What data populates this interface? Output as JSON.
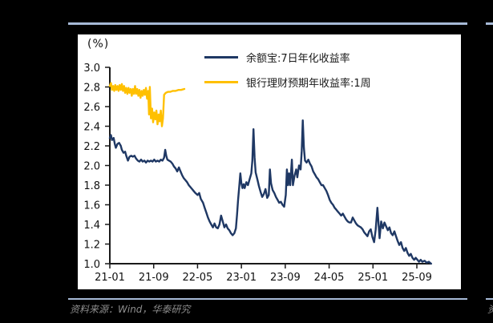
{
  "page": {
    "background_color": "#000000",
    "divider_color": "#A6B9D6",
    "panel_color": "#FFFFFF"
  },
  "footer": {
    "source_text": "资料来源：Wind，华泰研究",
    "text_color": "#8E8E8E",
    "right_edge_fragment": "资"
  },
  "chart_data": {
    "type": "line",
    "title": "",
    "unit_label": "(%)",
    "axis_color": "#1a1a1a",
    "text_color": "#111111",
    "grid": "off",
    "legend_position": "top-center",
    "x_axis": {
      "label": "",
      "tick_months": [
        0,
        8,
        16,
        24,
        32,
        40,
        48,
        56
      ],
      "tick_labels": [
        "21-01",
        "21-09",
        "22-05",
        "23-01",
        "23-09",
        "24-05",
        "25-01",
        "25-09"
      ]
    },
    "y_axis": {
      "label": "(%)",
      "min": 1.0,
      "max": 3.0,
      "step": 0.2,
      "tick_labels": [
        "3.0",
        "2.8",
        "2.6",
        "2.4",
        "2.2",
        "2.0",
        "1.8",
        "1.6",
        "1.4",
        "1.2",
        "1.0"
      ]
    },
    "series": [
      {
        "name": "余额宝:7日年化收益率",
        "color": "#1F3864",
        "points": [
          [
            0,
            2.28
          ],
          [
            0.2,
            2.31
          ],
          [
            0.4,
            2.26
          ],
          [
            0.7,
            2.28
          ],
          [
            0.9,
            2.22
          ],
          [
            1.1,
            2.18
          ],
          [
            1.4,
            2.22
          ],
          [
            1.7,
            2.23
          ],
          [
            2,
            2.2
          ],
          [
            2.2,
            2.16
          ],
          [
            2.5,
            2.13
          ],
          [
            2.8,
            2.14
          ],
          [
            3,
            2.1
          ],
          [
            3.3,
            2.05
          ],
          [
            3.6,
            2.09
          ],
          [
            3.9,
            2.1
          ],
          [
            4.2,
            2.09
          ],
          [
            4.5,
            2.1
          ],
          [
            4.8,
            2.07
          ],
          [
            5.1,
            2.05
          ],
          [
            5.4,
            2.04
          ],
          [
            5.7,
            2.06
          ],
          [
            6,
            2.04
          ],
          [
            6.3,
            2.05
          ],
          [
            6.6,
            2.03
          ],
          [
            6.9,
            2.05
          ],
          [
            7.2,
            2.04
          ],
          [
            7.5,
            2.05
          ],
          [
            7.8,
            2.04
          ],
          [
            8.1,
            2.06
          ],
          [
            8.4,
            2.04
          ],
          [
            8.7,
            2.05
          ],
          [
            9,
            2.04
          ],
          [
            9.3,
            2.06
          ],
          [
            9.6,
            2.05
          ],
          [
            9.9,
            2.08
          ],
          [
            10.1,
            2.16
          ],
          [
            10.3,
            2.1
          ],
          [
            10.5,
            2.06
          ],
          [
            10.8,
            2.05
          ],
          [
            11.1,
            2.04
          ],
          [
            11.4,
            2.02
          ],
          [
            11.7,
            1.99
          ],
          [
            12,
            1.97
          ],
          [
            12.3,
            1.94
          ],
          [
            12.6,
            1.98
          ],
          [
            12.9,
            1.94
          ],
          [
            13.2,
            1.9
          ],
          [
            13.5,
            1.87
          ],
          [
            13.8,
            1.85
          ],
          [
            14.1,
            1.83
          ],
          [
            14.4,
            1.8
          ],
          [
            14.7,
            1.78
          ],
          [
            15,
            1.76
          ],
          [
            15.3,
            1.74
          ],
          [
            15.6,
            1.72
          ],
          [
            16,
            1.7
          ],
          [
            16.3,
            1.72
          ],
          [
            16.6,
            1.66
          ],
          [
            17,
            1.62
          ],
          [
            17.3,
            1.57
          ],
          [
            17.6,
            1.52
          ],
          [
            17.9,
            1.47
          ],
          [
            18.2,
            1.43
          ],
          [
            18.5,
            1.4
          ],
          [
            18.8,
            1.37
          ],
          [
            19.1,
            1.41
          ],
          [
            19.4,
            1.37
          ],
          [
            19.7,
            1.36
          ],
          [
            20,
            1.4
          ],
          [
            20.3,
            1.49
          ],
          [
            20.6,
            1.43
          ],
          [
            20.9,
            1.37
          ],
          [
            21.2,
            1.4
          ],
          [
            21.5,
            1.36
          ],
          [
            21.8,
            1.34
          ],
          [
            22.1,
            1.31
          ],
          [
            22.4,
            1.29
          ],
          [
            22.7,
            1.31
          ],
          [
            23,
            1.36
          ],
          [
            23.2,
            1.5
          ],
          [
            23.4,
            1.65
          ],
          [
            23.6,
            1.78
          ],
          [
            23.8,
            1.92
          ],
          [
            24,
            1.82
          ],
          [
            24.2,
            1.77
          ],
          [
            24.4,
            1.81
          ],
          [
            24.6,
            1.77
          ],
          [
            24.9,
            1.83
          ],
          [
            25.2,
            1.8
          ],
          [
            25.5,
            1.86
          ],
          [
            25.8,
            1.92
          ],
          [
            26,
            2.05
          ],
          [
            26.2,
            2.37
          ],
          [
            26.4,
            2.08
          ],
          [
            26.6,
            1.93
          ],
          [
            26.9,
            1.86
          ],
          [
            27.2,
            1.79
          ],
          [
            27.5,
            1.73
          ],
          [
            27.8,
            1.68
          ],
          [
            28.1,
            1.71
          ],
          [
            28.4,
            1.76
          ],
          [
            28.7,
            1.67
          ],
          [
            29,
            1.7
          ],
          [
            29.2,
            1.96
          ],
          [
            29.4,
            1.82
          ],
          [
            29.7,
            1.75
          ],
          [
            30,
            1.72
          ],
          [
            30.3,
            1.68
          ],
          [
            30.6,
            1.65
          ],
          [
            30.9,
            1.62
          ],
          [
            31.2,
            1.63
          ],
          [
            31.5,
            1.6
          ],
          [
            31.8,
            1.58
          ],
          [
            32.1,
            1.7
          ],
          [
            32.3,
            1.96
          ],
          [
            32.5,
            1.8
          ],
          [
            32.7,
            1.92
          ],
          [
            32.9,
            1.8
          ],
          [
            33.2,
            2.06
          ],
          [
            33.4,
            1.8
          ],
          [
            33.7,
            1.9
          ],
          [
            34,
            1.96
          ],
          [
            34.2,
            1.88
          ],
          [
            34.5,
            2.0
          ],
          [
            34.8,
            1.96
          ],
          [
            35,
            2.15
          ],
          [
            35.2,
            2.46
          ],
          [
            35.4,
            2.18
          ],
          [
            35.6,
            2.05
          ],
          [
            35.9,
            2.03
          ],
          [
            36.2,
            2.06
          ],
          [
            36.5,
            2.02
          ],
          [
            36.8,
            1.99
          ],
          [
            37.1,
            1.94
          ],
          [
            37.4,
            1.91
          ],
          [
            37.7,
            1.88
          ],
          [
            38,
            1.86
          ],
          [
            38.3,
            1.83
          ],
          [
            38.6,
            1.8
          ],
          [
            38.9,
            1.8
          ],
          [
            39.2,
            1.77
          ],
          [
            39.5,
            1.74
          ],
          [
            39.8,
            1.7
          ],
          [
            40.1,
            1.65
          ],
          [
            40.4,
            1.62
          ],
          [
            40.7,
            1.6
          ],
          [
            41,
            1.57
          ],
          [
            41.3,
            1.55
          ],
          [
            41.6,
            1.53
          ],
          [
            41.9,
            1.51
          ],
          [
            42.2,
            1.49
          ],
          [
            42.5,
            1.51
          ],
          [
            42.8,
            1.48
          ],
          [
            43.1,
            1.45
          ],
          [
            43.4,
            1.43
          ],
          [
            43.7,
            1.42
          ],
          [
            44,
            1.42
          ],
          [
            44.3,
            1.47
          ],
          [
            44.6,
            1.44
          ],
          [
            44.9,
            1.41
          ],
          [
            45.2,
            1.39
          ],
          [
            45.5,
            1.38
          ],
          [
            45.8,
            1.37
          ],
          [
            46.1,
            1.35
          ],
          [
            46.4,
            1.32
          ],
          [
            46.7,
            1.3
          ],
          [
            47,
            1.28
          ],
          [
            47.3,
            1.33
          ],
          [
            47.6,
            1.35
          ],
          [
            47.9,
            1.27
          ],
          [
            48.2,
            1.22
          ],
          [
            48.5,
            1.35
          ],
          [
            48.8,
            1.57
          ],
          [
            49,
            1.42
          ],
          [
            49.2,
            1.26
          ],
          [
            49.5,
            1.43
          ],
          [
            49.8,
            1.36
          ],
          [
            50.1,
            1.42
          ],
          [
            50.4,
            1.38
          ],
          [
            50.7,
            1.34
          ],
          [
            51,
            1.37
          ],
          [
            51.3,
            1.31
          ],
          [
            51.6,
            1.29
          ],
          [
            51.9,
            1.33
          ],
          [
            52.2,
            1.28
          ],
          [
            52.5,
            1.23
          ],
          [
            52.8,
            1.19
          ],
          [
            53.1,
            1.22
          ],
          [
            53.4,
            1.16
          ],
          [
            53.7,
            1.13
          ],
          [
            54,
            1.16
          ],
          [
            54.3,
            1.11
          ],
          [
            54.6,
            1.08
          ],
          [
            54.9,
            1.1
          ],
          [
            55.2,
            1.06
          ],
          [
            55.5,
            1.04
          ],
          [
            55.8,
            1.06
          ],
          [
            56.1,
            1.04
          ],
          [
            56.4,
            1.02
          ],
          [
            56.7,
            1.04
          ],
          [
            57,
            1.02
          ],
          [
            57.4,
            1.03
          ],
          [
            57.8,
            1.01
          ],
          [
            58.2,
            1.02
          ],
          [
            58.6,
            1.0
          ]
        ]
      },
      {
        "name": "银行理财预期年收益率:1周",
        "color": "#FFC000",
        "points": [
          [
            0,
            2.81
          ],
          [
            0.2,
            2.84
          ],
          [
            0.4,
            2.77
          ],
          [
            0.6,
            2.81
          ],
          [
            0.8,
            2.76
          ],
          [
            1,
            2.82
          ],
          [
            1.2,
            2.77
          ],
          [
            1.4,
            2.81
          ],
          [
            1.6,
            2.76
          ],
          [
            1.8,
            2.82
          ],
          [
            2,
            2.77
          ],
          [
            2.2,
            2.83
          ],
          [
            2.4,
            2.76
          ],
          [
            2.6,
            2.81
          ],
          [
            2.8,
            2.74
          ],
          [
            3,
            2.79
          ],
          [
            3.2,
            2.73
          ],
          [
            3.4,
            2.79
          ],
          [
            3.6,
            2.74
          ],
          [
            3.8,
            2.78
          ],
          [
            4,
            2.71
          ],
          [
            4.2,
            2.78
          ],
          [
            4.4,
            2.73
          ],
          [
            4.6,
            2.81
          ],
          [
            4.8,
            2.73
          ],
          [
            5,
            2.78
          ],
          [
            5.2,
            2.71
          ],
          [
            5.4,
            2.77
          ],
          [
            5.6,
            2.69
          ],
          [
            5.8,
            2.76
          ],
          [
            6,
            2.71
          ],
          [
            6.2,
            2.77
          ],
          [
            6.4,
            2.72
          ],
          [
            6.6,
            2.79
          ],
          [
            6.8,
            2.68
          ],
          [
            7,
            2.76
          ],
          [
            7.15,
            2.52
          ],
          [
            7.3,
            2.8
          ],
          [
            7.5,
            2.48
          ],
          [
            7.7,
            2.58
          ],
          [
            7.9,
            2.44
          ],
          [
            8.1,
            2.54
          ],
          [
            8.3,
            2.47
          ],
          [
            8.5,
            2.56
          ],
          [
            8.7,
            2.42
          ],
          [
            8.9,
            2.52
          ],
          [
            9.1,
            2.45
          ],
          [
            9.3,
            2.56
          ],
          [
            9.5,
            2.4
          ],
          [
            9.7,
            2.48
          ],
          [
            9.9,
            2.72
          ],
          [
            10.2,
            2.74
          ],
          [
            10.6,
            2.75
          ],
          [
            11,
            2.75
          ],
          [
            11.5,
            2.76
          ],
          [
            12,
            2.76
          ],
          [
            12.5,
            2.77
          ],
          [
            13,
            2.77
          ],
          [
            13.6,
            2.78
          ]
        ]
      }
    ]
  }
}
